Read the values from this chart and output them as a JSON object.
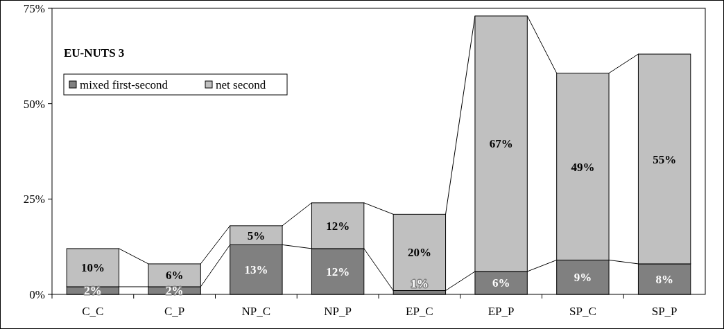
{
  "chart_data": {
    "type": "bar",
    "stacked": true,
    "title": "EU-NUTS 3",
    "categories": [
      "C_C",
      "C_P",
      "NP_C",
      "NP_P",
      "EP_C",
      "EP_P",
      "SP_C",
      "SP_P"
    ],
    "series": [
      {
        "name": "mixed first-second",
        "color": "#808080",
        "values": [
          2,
          2,
          13,
          12,
          1,
          6,
          9,
          8
        ],
        "value_labels": [
          "2%",
          "2%",
          "13%",
          "12%",
          "1%",
          "6%",
          "9%",
          "8%"
        ]
      },
      {
        "name": "net second",
        "color": "#c0c0c0",
        "values": [
          10,
          6,
          5,
          12,
          20,
          67,
          49,
          55
        ],
        "value_labels": [
          "10%",
          "6%",
          "5%",
          "12%",
          "20%",
          "67%",
          "49%",
          "55%"
        ]
      }
    ],
    "ylim": [
      0,
      75
    ],
    "yticks": [
      {
        "value": 0,
        "label": "0%"
      },
      {
        "value": 25,
        "label": "25%"
      },
      {
        "value": 50,
        "label": "50%"
      },
      {
        "value": 75,
        "label": "75%"
      }
    ],
    "legend": "top left",
    "grid": false
  }
}
